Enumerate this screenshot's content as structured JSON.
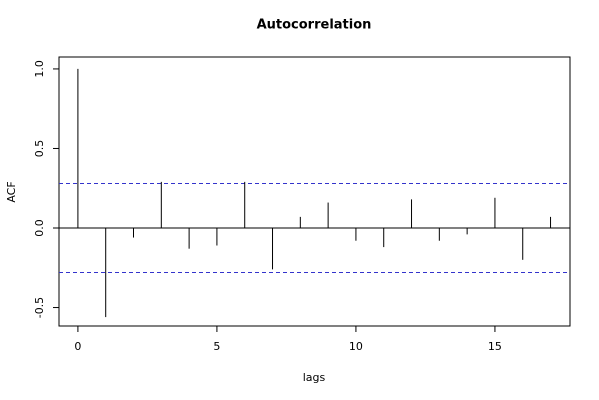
{
  "chart_data": {
    "type": "stem",
    "title": "Autocorrelation",
    "x_label": "lags",
    "y_label": "ACF",
    "x": [
      0,
      1,
      2,
      3,
      4,
      5,
      6,
      7,
      8,
      9,
      10,
      11,
      12,
      13,
      14,
      15,
      16,
      17
    ],
    "values": [
      1.0,
      -0.56,
      -0.06,
      0.29,
      -0.13,
      -0.11,
      0.29,
      -0.26,
      0.07,
      0.16,
      -0.08,
      -0.12,
      0.18,
      -0.08,
      -0.04,
      0.19,
      -0.2,
      0.07
    ],
    "color": "#000000",
    "conf_lines": [
      0.28,
      -0.28
    ],
    "conf_color": "#3333cc",
    "xlim": [
      -0.68,
      17.7
    ],
    "xticks": [
      0,
      5,
      10,
      15
    ],
    "ylim": [
      -0.616,
      1.075
    ],
    "yticks": [
      {
        "value": -0.5,
        "label": "-0.5"
      },
      {
        "value": 0,
        "label": "0.0"
      },
      0.5,
      {
        "value": 1,
        "label": "1.0"
      }
    ]
  }
}
